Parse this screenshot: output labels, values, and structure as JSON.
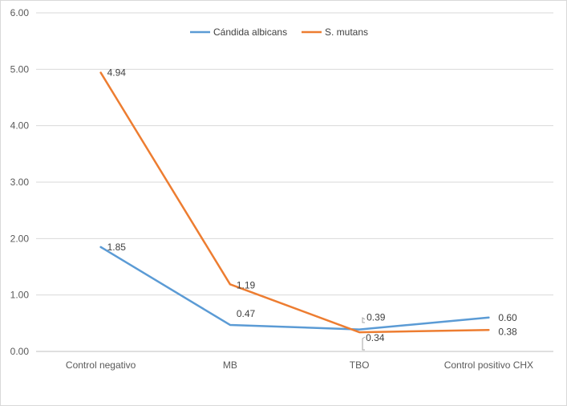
{
  "chart_data": {
    "type": "line",
    "categories": [
      "Control negativo",
      "MB",
      "TBO",
      "Control positivo CHX"
    ],
    "series": [
      {
        "name": "Cándida albicans",
        "values": [
          1.85,
          0.47,
          0.39,
          0.6
        ],
        "labels": [
          "1.85",
          "0.47",
          "0.39",
          "0.60"
        ],
        "color": "#5b9bd5"
      },
      {
        "name": "S. mutans",
        "values": [
          4.94,
          1.19,
          0.34,
          0.38
        ],
        "labels": [
          "4.94",
          "1.19",
          "0.34",
          "0.38"
        ],
        "color": "#ed7d31"
      }
    ],
    "y_ticks": [
      "0.00",
      "1.00",
      "2.00",
      "3.00",
      "4.00",
      "5.00",
      "6.00"
    ],
    "ylim": [
      0,
      6
    ],
    "grid": true,
    "legend_position": "top"
  }
}
